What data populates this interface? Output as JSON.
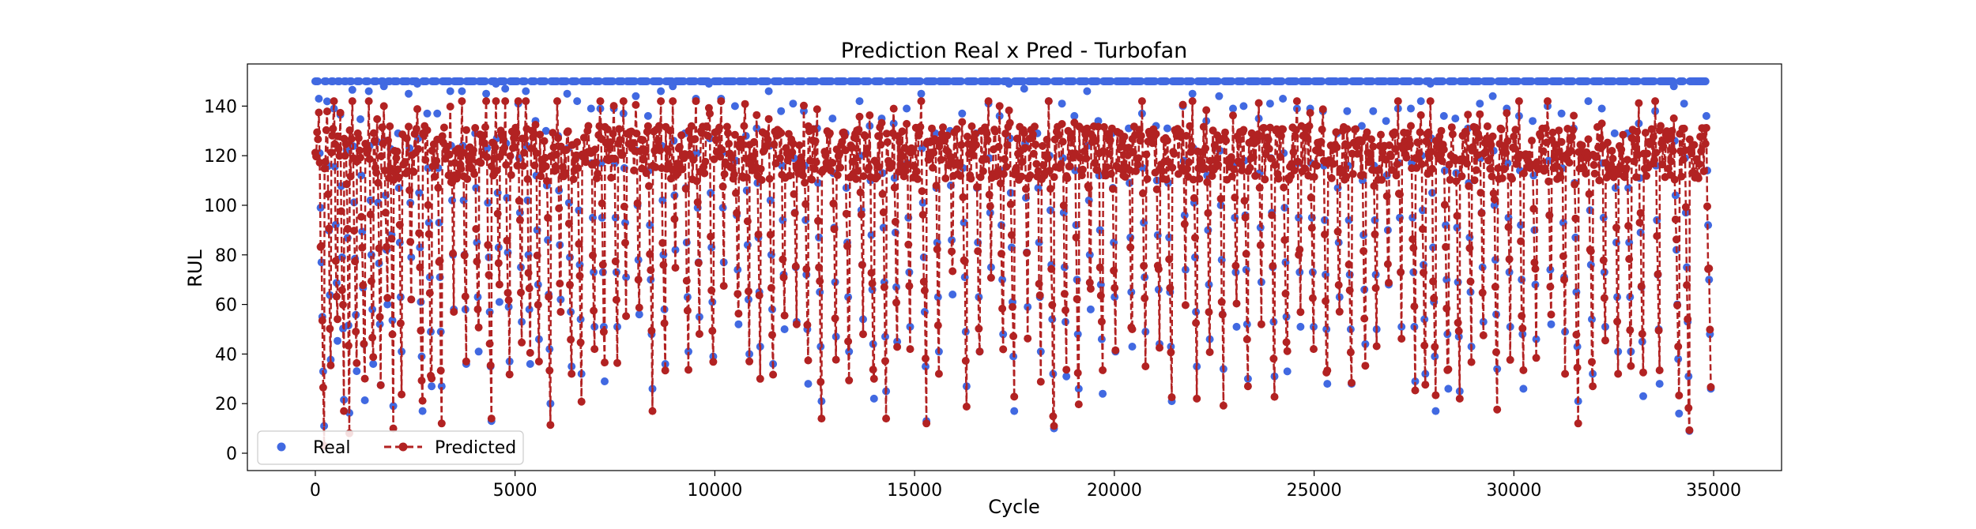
{
  "chart_data": {
    "type": "line",
    "title": "Prediction Real x Pred - Turbofan",
    "xlabel": "Cycle",
    "ylabel": "RUL",
    "xlim": [
      -1700,
      36700
    ],
    "ylim": [
      -7,
      157
    ],
    "xticks": [
      0,
      5000,
      10000,
      15000,
      20000,
      25000,
      30000,
      35000
    ],
    "yticks": [
      0,
      20,
      40,
      60,
      80,
      100,
      120,
      140
    ],
    "grid": false,
    "legend_position": "lower-left",
    "series": [
      {
        "name": "Real",
        "style": "points",
        "color": "#4169E1",
        "cap": 150,
        "segment_ends": [
          230,
          400,
          560,
          720,
          860,
          1040,
          1250,
          1460,
          1650,
          1820,
          1960,
          2180,
          2420,
          2690,
          2920,
          3180,
          3470,
          3780,
          4100,
          4410,
          4620,
          4880,
          5180,
          5400,
          5620,
          5900,
          6150,
          6420,
          6680,
          7000,
          7250,
          7580,
          7800,
          8130,
          8450,
          8770,
          9030,
          9350,
          9630,
          9980,
          10240,
          10600,
          10870,
          11150,
          11480,
          11760,
          12050,
          12340,
          12680,
          13050,
          13380,
          13720,
          14000,
          14300,
          14580,
          14900,
          15300,
          15620,
          15970,
          16320,
          16650,
          16930,
          17230,
          17500,
          17850,
          18180,
          18490,
          18800,
          19120,
          19420,
          19720,
          20050,
          20450,
          20800,
          21150,
          21450,
          21800,
          22080,
          22400,
          22750,
          23080,
          23350,
          23700,
          24020,
          24350,
          24680,
          25000,
          25350,
          25650,
          25950,
          26300,
          26580,
          26880,
          27200,
          27540,
          27800,
          28050,
          28380,
          28650,
          28950,
          29250,
          29600,
          29930,
          30250,
          30580,
          30950,
          31300,
          31620,
          31980,
          32300,
          32620,
          32950,
          33250,
          33650,
          34150,
          34400,
          34950
        ],
        "segment_mins": [
          1,
          20,
          40,
          15,
          5,
          30,
          10,
          25,
          13,
          45,
          8,
          20,
          60,
          12,
          18,
          10,
          55,
          35,
          30,
          12,
          50,
          20,
          40,
          15,
          25,
          5,
          55,
          30,
          15,
          40,
          22,
          30,
          50,
          35,
          15,
          25,
          65,
          30,
          40,
          20,
          60,
          45,
          35,
          28,
          15,
          35,
          50,
          25,
          12,
          30,
          20,
          45,
          7,
          12,
          30,
          40,
          10,
          30,
          45,
          8,
          20,
          60,
          35,
          12,
          40,
          20,
          9,
          30,
          15,
          45,
          11,
          20,
          40,
          30,
          25,
          8,
          55,
          20,
          35,
          15,
          30,
          25,
          50,
          20,
          12,
          30,
          40,
          9,
          50,
          15,
          25,
          35,
          55,
          40,
          20,
          15,
          10,
          5,
          20,
          30,
          40,
          15,
          30,
          15,
          25,
          35,
          30,
          10,
          25,
          40,
          30,
          20,
          10,
          25,
          1,
          2,
          5
        ]
      },
      {
        "name": "Predicted",
        "style": "line-dash-markers",
        "color": "#B22222",
        "cap": 142
      }
    ]
  }
}
